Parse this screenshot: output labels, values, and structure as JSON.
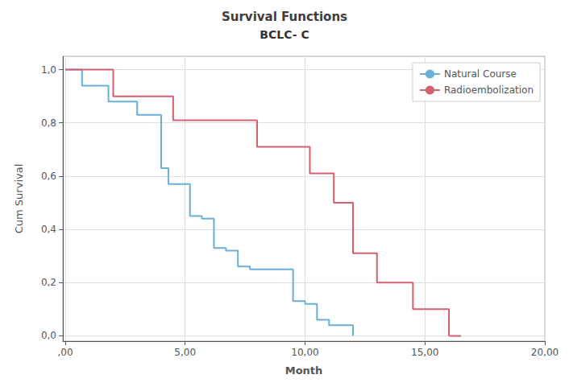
{
  "chart_data": {
    "type": "line",
    "title": "Survival Functions",
    "subtitle": "BCLC- C",
    "xlabel": "Month",
    "ylabel": "Cum Survival",
    "xlim": [
      -0.1,
      20
    ],
    "ylim": [
      -0.02,
      1.05
    ],
    "xticks": [
      {
        "value": 0,
        "label": ",00"
      },
      {
        "value": 5,
        "label": "5,00"
      },
      {
        "value": 10,
        "label": "10,00"
      },
      {
        "value": 15,
        "label": "15,00"
      },
      {
        "value": 20,
        "label": "20,00"
      }
    ],
    "yticks": [
      {
        "value": 0.0,
        "label": "0,0"
      },
      {
        "value": 0.2,
        "label": "0,2"
      },
      {
        "value": 0.4,
        "label": "0,4"
      },
      {
        "value": 0.6,
        "label": "0,6"
      },
      {
        "value": 0.8,
        "label": "0,8"
      },
      {
        "value": 1.0,
        "label": "1,0"
      }
    ],
    "grid": true,
    "legend": "upper right",
    "series": [
      {
        "name": "Natural Course",
        "color": "#6baed6",
        "x": [
          0,
          0.7,
          1.0,
          1.8,
          2.2,
          3.0,
          3.5,
          4.0,
          4.3,
          4.8,
          5.2,
          5.7,
          6.2,
          6.7,
          7.2,
          7.7,
          8.2,
          9.5,
          10.0,
          10.5,
          11.0,
          11.8,
          12.0
        ],
        "values": [
          1.0,
          0.94,
          0.94,
          0.88,
          0.88,
          0.83,
          0.83,
          0.63,
          0.57,
          0.57,
          0.45,
          0.44,
          0.33,
          0.32,
          0.26,
          0.25,
          0.25,
          0.13,
          0.12,
          0.06,
          0.04,
          0.04,
          0.0
        ]
      },
      {
        "name": "Radioembolization",
        "color": "#d45f6e",
        "x": [
          0,
          2.0,
          2.5,
          4.5,
          7.5,
          8.0,
          9.5,
          10.2,
          11.2,
          12.0,
          12.5,
          13.0,
          14.5,
          15.0,
          16.0,
          16.5
        ],
        "values": [
          1.0,
          0.9,
          0.9,
          0.81,
          0.81,
          0.71,
          0.71,
          0.61,
          0.5,
          0.31,
          0.31,
          0.2,
          0.1,
          0.1,
          0.0,
          0.0
        ]
      }
    ]
  }
}
